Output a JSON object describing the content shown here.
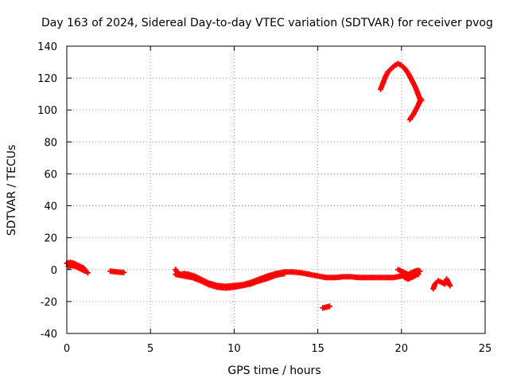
{
  "chart_data": {
    "type": "scatter",
    "title": "Day 163 of 2024, Sidereal Day-to-day VTEC variation (SDTVAR) for receiver pvog",
    "xlabel": "GPS time / hours",
    "ylabel": "SDTVAR / TECUs",
    "xlim": [
      0,
      25
    ],
    "ylim": [
      -40,
      140
    ],
    "xticks": [
      0,
      5,
      10,
      15,
      20,
      25
    ],
    "yticks": [
      -40,
      -20,
      0,
      20,
      40,
      60,
      80,
      100,
      120,
      140
    ],
    "xtick_labels": [
      "0",
      "5",
      "10",
      "15",
      "20",
      "25"
    ],
    "ytick_labels": [
      "-40",
      "-20",
      "0",
      "20",
      "40",
      "60",
      "80",
      "100",
      "120",
      "140"
    ],
    "grid": true,
    "marker": "plus",
    "series": [
      {
        "name": "SDTVAR",
        "color": "#ff0000",
        "segments": [
          [
            [
              0.0,
              4
            ],
            [
              0.2,
              4.5
            ],
            [
              0.4,
              4
            ],
            [
              0.6,
              3
            ],
            [
              0.8,
              2
            ],
            [
              1.0,
              1
            ],
            [
              1.15,
              -1
            ],
            [
              1.25,
              -2
            ]
          ],
          [
            [
              0.1,
              2
            ],
            [
              0.3,
              2.5
            ],
            [
              0.5,
              2
            ],
            [
              0.7,
              1
            ],
            [
              0.9,
              0
            ],
            [
              1.1,
              -1
            ]
          ],
          [
            [
              2.6,
              -1
            ],
            [
              2.8,
              -1.2
            ],
            [
              3.0,
              -1.5
            ],
            [
              3.4,
              -1.8
            ]
          ],
          [
            [
              6.5,
              0
            ],
            [
              6.6,
              -2
            ],
            [
              6.8,
              -3
            ],
            [
              7.0,
              -2.5
            ],
            [
              7.3,
              -3
            ],
            [
              7.6,
              -4
            ],
            [
              8.0,
              -6
            ],
            [
              8.5,
              -8.5
            ],
            [
              9.0,
              -10
            ],
            [
              9.5,
              -10.5
            ],
            [
              10.0,
              -10
            ],
            [
              10.5,
              -9.5
            ],
            [
              11.0,
              -8
            ],
            [
              11.5,
              -6
            ],
            [
              12.0,
              -4
            ],
            [
              12.5,
              -2.5
            ],
            [
              13.0,
              -1.5
            ],
            [
              13.5,
              -1.5
            ],
            [
              14.0,
              -2
            ],
            [
              14.5,
              -3
            ],
            [
              15.0,
              -4
            ],
            [
              15.5,
              -5
            ],
            [
              16.0,
              -5
            ],
            [
              16.5,
              -4.5
            ],
            [
              17.0,
              -4.5
            ],
            [
              17.5,
              -5
            ],
            [
              18.0,
              -5
            ],
            [
              18.5,
              -5
            ],
            [
              19.0,
              -5
            ],
            [
              19.5,
              -5
            ],
            [
              20.0,
              -4
            ],
            [
              20.5,
              -4
            ],
            [
              21.0,
              -3
            ]
          ],
          [
            [
              6.5,
              -3
            ],
            [
              7.0,
              -4
            ],
            [
              7.5,
              -5
            ],
            [
              8.0,
              -7
            ],
            [
              8.5,
              -9.5
            ],
            [
              9.0,
              -11
            ],
            [
              9.5,
              -11.5
            ],
            [
              10.0,
              -11
            ],
            [
              10.5,
              -10
            ],
            [
              11.0,
              -9
            ],
            [
              11.5,
              -7
            ],
            [
              12.0,
              -5.5
            ],
            [
              12.5,
              -3.5
            ],
            [
              13.0,
              -2.5
            ]
          ],
          [
            [
              15.3,
              -24
            ],
            [
              15.5,
              -23.5
            ],
            [
              15.7,
              -23
            ]
          ],
          [
            [
              19.8,
              0
            ],
            [
              20.0,
              -1
            ],
            [
              20.2,
              -2
            ],
            [
              20.4,
              -3
            ],
            [
              20.6,
              -2
            ],
            [
              20.8,
              -1
            ],
            [
              21.0,
              -0.5
            ],
            [
              21.1,
              -1
            ]
          ],
          [
            [
              20.0,
              -3
            ],
            [
              20.2,
              -5
            ],
            [
              20.4,
              -6
            ],
            [
              20.6,
              -5
            ],
            [
              20.8,
              -4
            ]
          ],
          [
            [
              21.9,
              -12
            ],
            [
              22.0,
              -9
            ],
            [
              22.2,
              -7
            ],
            [
              22.4,
              -8
            ],
            [
              22.6,
              -9
            ],
            [
              22.7,
              -6
            ],
            [
              22.8,
              -8
            ],
            [
              22.9,
              -10
            ]
          ],
          [
            [
              18.75,
              113
            ],
            [
              18.9,
              117
            ],
            [
              19.05,
              121
            ],
            [
              19.2,
              124
            ],
            [
              19.4,
              126
            ],
            [
              19.6,
              128
            ],
            [
              19.8,
              129
            ],
            [
              20.0,
              128
            ],
            [
              20.2,
              126
            ],
            [
              20.4,
              123
            ],
            [
              20.6,
              119
            ],
            [
              20.8,
              115
            ],
            [
              20.95,
              111
            ],
            [
              21.1,
              107
            ],
            [
              21.2,
              106
            ]
          ],
          [
            [
              21.15,
              107
            ],
            [
              21.0,
              103
            ],
            [
              20.85,
              100
            ],
            [
              20.7,
              97
            ],
            [
              20.55,
              95
            ],
            [
              20.5,
              94
            ]
          ]
        ]
      }
    ]
  }
}
